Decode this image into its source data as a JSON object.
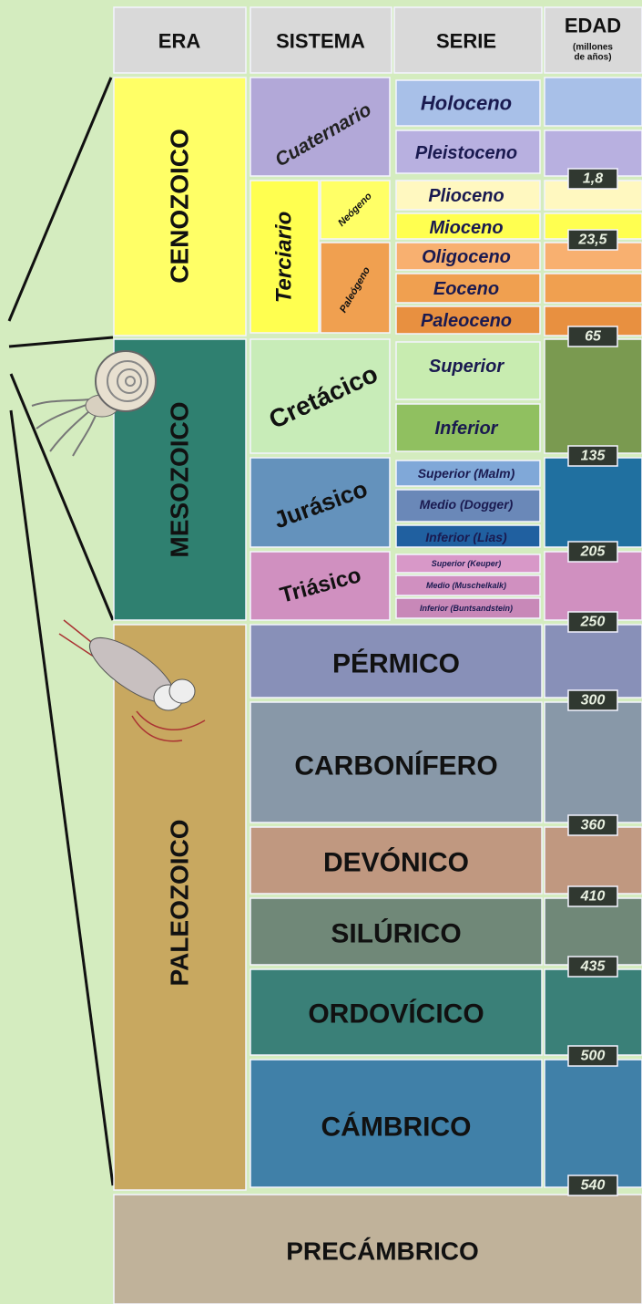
{
  "header": {
    "era": "ERA",
    "sistema": "SISTEMA",
    "serie": "SERIE",
    "edad": "EDAD",
    "edad_note": [
      "(millones",
      "de años)"
    ]
  },
  "eras": [
    "CENOZOICO",
    "MESOZOICO",
    "PALEOZOICO",
    "PRECÁMBRICO"
  ],
  "systems": [
    "Cuaternario",
    "Terciario",
    "Neógeno",
    "Paleógeno",
    "Cretácico",
    "Jurásico",
    "Triásico",
    "PÉRMICO",
    "CARBONÍFERO",
    "DEVÓNICO",
    "SILÚRICO",
    "ORDOVÍCICO",
    "CÁMBRICO"
  ],
  "series": [
    "Holoceno",
    "Pleistoceno",
    "Plioceno",
    "Mioceno",
    "Oligoceno",
    "Eoceno",
    "Paleoceno",
    "Superior",
    "Inferior",
    "Superior (Malm)",
    "Medio (Dogger)",
    "Inferior (Lias)",
    "Superior (Keuper)",
    "Medio (Muschelkalk)",
    "Inferior (Buntsandstein)"
  ],
  "ages": [
    "1,8",
    "23,5",
    "65",
    "135",
    "205",
    "250",
    "300",
    "360",
    "410",
    "435",
    "500",
    "540"
  ]
}
